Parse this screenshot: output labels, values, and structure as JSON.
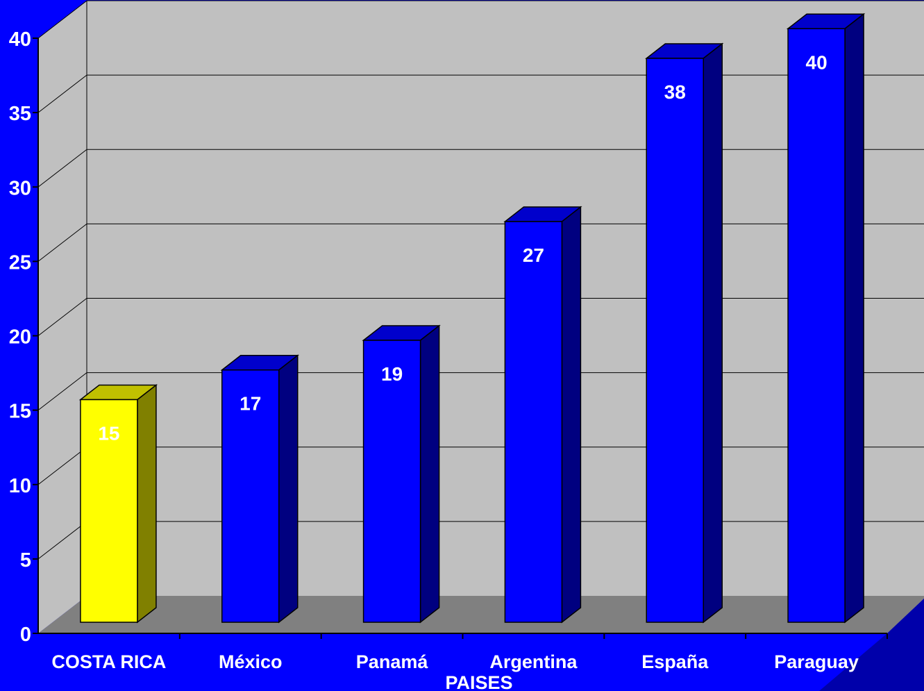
{
  "chart_data": {
    "type": "bar",
    "categories": [
      "COSTA RICA",
      "México",
      "Panamá",
      "Argentina",
      "España",
      "Paraguay"
    ],
    "values": [
      15,
      17,
      19,
      27,
      38,
      40
    ],
    "xlabel": "PAISES",
    "ylabel": "",
    "ylim": [
      0,
      40
    ],
    "yticks": [
      0,
      5,
      10,
      15,
      20,
      25,
      30,
      35,
      40
    ],
    "grid": true,
    "legend": "none",
    "colors": {
      "background": "#0000ff",
      "plot_wall": "#c0c0c0",
      "plot_floor": "#808080",
      "bar_default": "#0000ff",
      "bar_highlight": "#ffff00",
      "data_label_default": "#ffffff",
      "data_label_highlight": "#ffffff"
    },
    "highlight_index": 0
  }
}
